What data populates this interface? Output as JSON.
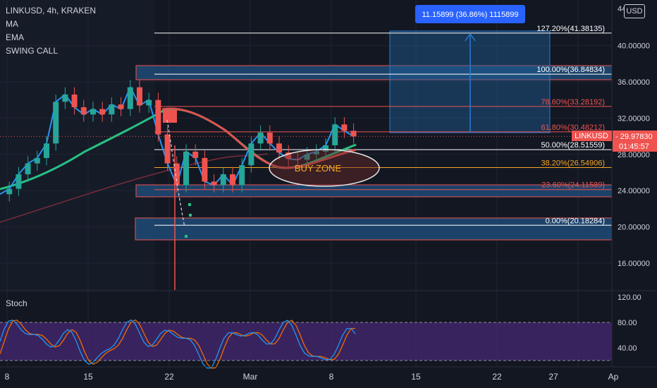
{
  "header": {
    "symbol_line": "LINKUSD, 4h, KRAKEN",
    "indicators": [
      "MA",
      "EMA",
      "SWING CALL"
    ],
    "currency_button": "USD"
  },
  "price_axis": {
    "ticks": [
      "40.00000",
      "36.00000",
      "32.00000",
      "28.00000",
      "24.00000",
      "20.00000",
      "16.00000"
    ],
    "top_partial": "44"
  },
  "current_price": {
    "symbol": "LINKUSD",
    "value": "29.97830",
    "countdown": "01:45:57",
    "color": "#ef5350"
  },
  "fib_levels": [
    {
      "label": "127.20%(41.38135)",
      "price": 41.38135,
      "color": "#ffffff"
    },
    {
      "label": "100.00%(36.84834)",
      "price": 36.84834,
      "color": "#ffffff"
    },
    {
      "label": "78.60%(33.28192)",
      "price": 33.28192,
      "color": "#ef5350"
    },
    {
      "label": "61.80%(30.48212)",
      "price": 30.48212,
      "color": "#ef5350"
    },
    {
      "label": "50.00%(28.51559)",
      "price": 28.51559,
      "color": "#ffffff"
    },
    {
      "label": "38.20%(26.54906)",
      "price": 26.54906,
      "color": "#f5a623"
    },
    {
      "label": "23.60%(24.11589)",
      "price": 24.11589,
      "color": "#ef5350"
    },
    {
      "label": "0.00%(20.18284)",
      "price": 20.18284,
      "color": "#ffffff"
    }
  ],
  "measure_label": "11.15899 (36.86%) 1115899",
  "annotation_buy_zone": "BUY ZONE",
  "stoch": {
    "title": "Stoch",
    "ticks": [
      "120.00",
      "80.00",
      "40.00"
    ]
  },
  "time_axis": {
    "ticks": [
      "8",
      "15",
      "22",
      "Mar",
      "8",
      "15",
      "22",
      "27",
      "Ap"
    ]
  },
  "colors": {
    "background": "#131722",
    "up": "#26a69a",
    "down": "#ef5350",
    "ema": "#2196f3",
    "ma_green": "#26c281",
    "ma_red": "#e0534f",
    "zone": "#1e4a75",
    "stoch_fill": "#4a2a78"
  },
  "chart_data": {
    "type": "candlestick",
    "title": "LINKUSD, 4h, KRAKEN",
    "ylim": [
      13,
      44
    ],
    "price_series": [
      {
        "t": 0,
        "v": 23.6
      },
      {
        "t": 3,
        "v": 24.2
      },
      {
        "t": 6,
        "v": 25.8
      },
      {
        "t": 9,
        "v": 27.0
      },
      {
        "t": 12,
        "v": 27.6
      },
      {
        "t": 15,
        "v": 29.2
      },
      {
        "t": 18,
        "v": 33.8
      },
      {
        "t": 21,
        "v": 34.6
      },
      {
        "t": 24,
        "v": 33.2
      },
      {
        "t": 27,
        "v": 32.4
      },
      {
        "t": 30,
        "v": 33.0
      },
      {
        "t": 33,
        "v": 32.4
      },
      {
        "t": 36,
        "v": 33.5
      },
      {
        "t": 39,
        "v": 33.0
      },
      {
        "t": 42,
        "v": 35.4
      },
      {
        "t": 45,
        "v": 33.4
      },
      {
        "t": 48,
        "v": 34.0
      },
      {
        "t": 51,
        "v": 30.2
      },
      {
        "t": 54,
        "v": 27.0
      },
      {
        "t": 57,
        "v": 24.6
      },
      {
        "t": 60,
        "v": 28.3
      },
      {
        "t": 63,
        "v": 27.6
      },
      {
        "t": 66,
        "v": 25.0
      },
      {
        "t": 69,
        "v": 24.6
      },
      {
        "t": 72,
        "v": 25.8
      },
      {
        "t": 75,
        "v": 24.6
      },
      {
        "t": 78,
        "v": 26.8
      },
      {
        "t": 81,
        "v": 29.2
      },
      {
        "t": 84,
        "v": 30.4
      },
      {
        "t": 87,
        "v": 29.2
      },
      {
        "t": 90,
        "v": 28.2
      },
      {
        "t": 93,
        "v": 27.5
      },
      {
        "t": 96,
        "v": 27.4
      },
      {
        "t": 99,
        "v": 28.0
      },
      {
        "t": 102,
        "v": 28.3
      },
      {
        "t": 105,
        "v": 29.0
      },
      {
        "t": 108,
        "v": 31.3
      },
      {
        "t": 111,
        "v": 30.6
      },
      {
        "t": 114,
        "v": 29.98
      }
    ],
    "stoch_range": [
      0,
      120
    ],
    "stoch_bands": [
      20,
      80
    ]
  }
}
